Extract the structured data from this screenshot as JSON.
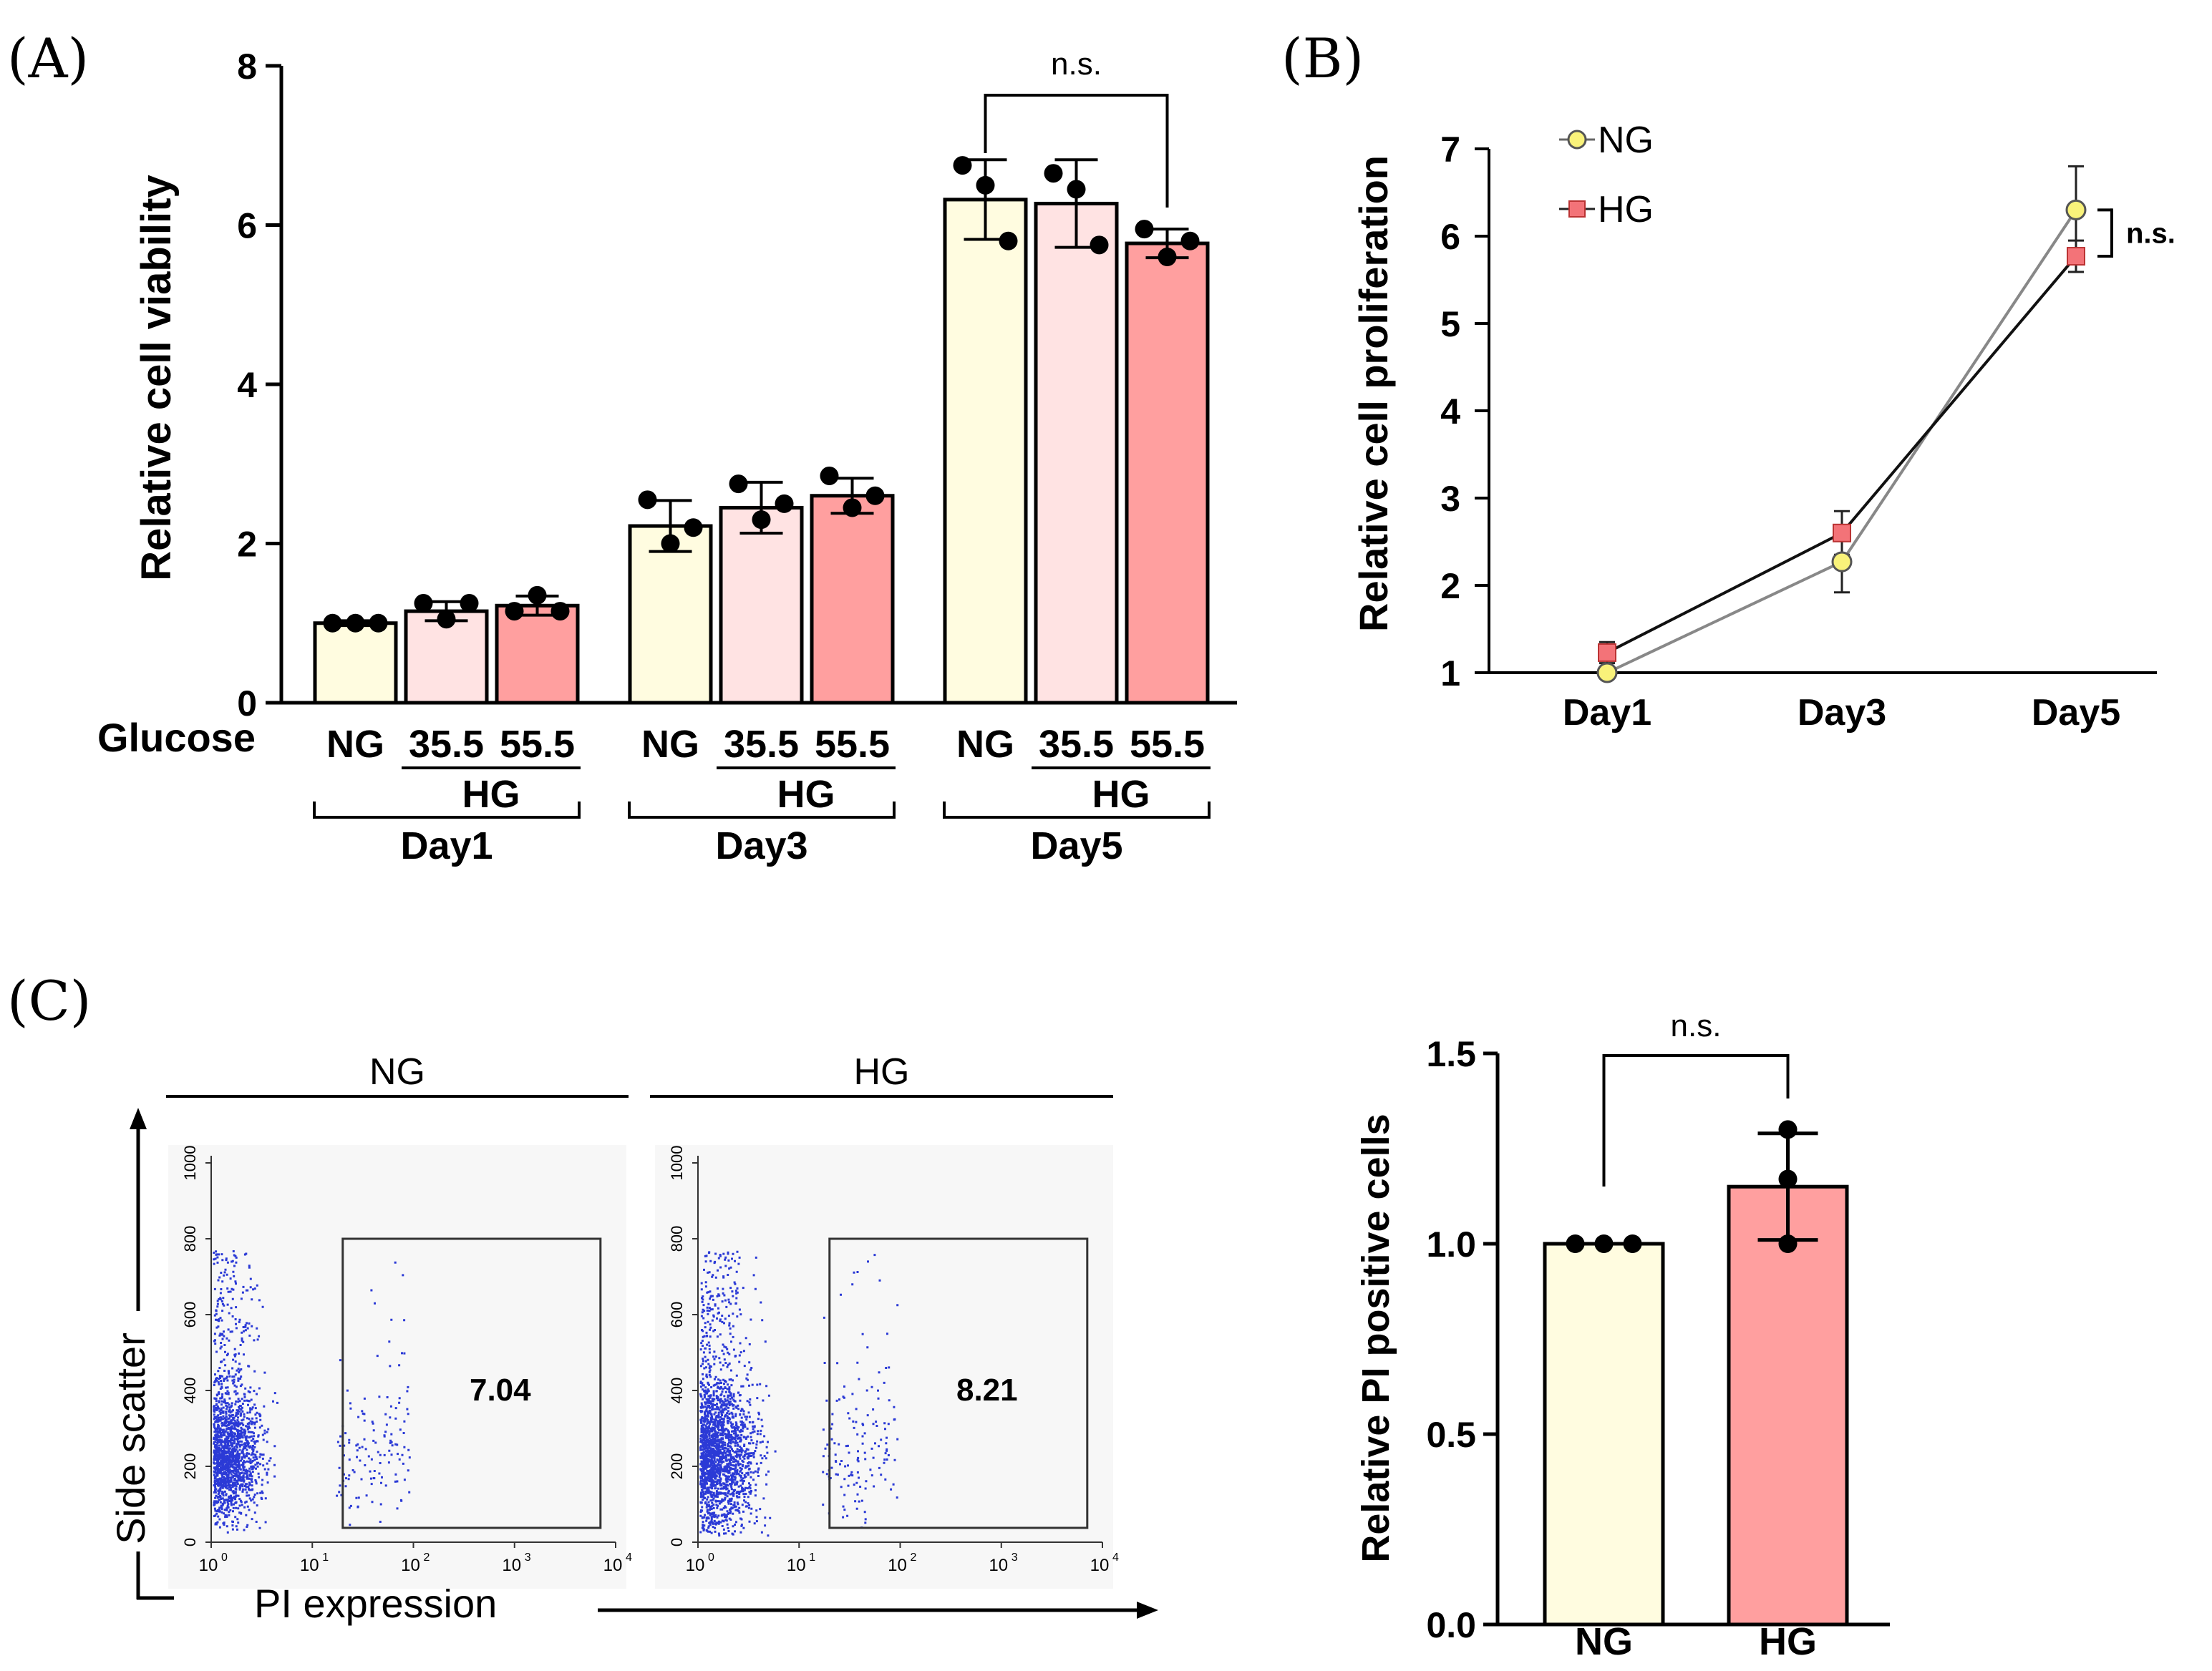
{
  "panels": {
    "A": {
      "label": "(A)"
    },
    "B": {
      "label": "(B)"
    },
    "C": {
      "label": "(C)"
    }
  },
  "colors": {
    "ng": "#fffce0",
    "hg_low": "#ffe3e3",
    "hg_high": "#ff9f9f",
    "marker_ng": "#f9f27a",
    "marker_hg": "#f37378",
    "line_ng": "#888888",
    "line_hg": "#111111",
    "dots": "#2b3ad6",
    "ink": "#000000"
  },
  "chart_data": [
    {
      "id": "viability",
      "type": "bar",
      "title": "",
      "ylabel": "Relative cell viability",
      "xlabel": "Glucose",
      "ylim": [
        0,
        8
      ],
      "yticks": [
        "0",
        "2",
        "4",
        "6",
        "8"
      ],
      "groups": [
        {
          "day": "Day1",
          "hg_label": "HG",
          "bars": [
            {
              "label": "NG",
              "value": 1.0,
              "sd": 0.03,
              "points": [
                1.0,
                1.0,
                1.0
              ],
              "color": "ng"
            },
            {
              "label": "35.5",
              "value": 1.15,
              "sd": 0.12,
              "points": [
                1.25,
                1.05,
                1.25
              ],
              "color": "hg_low"
            },
            {
              "label": "55.5",
              "value": 1.22,
              "sd": 0.12,
              "points": [
                1.15,
                1.35,
                1.15
              ],
              "color": "hg_high"
            }
          ]
        },
        {
          "day": "Day3",
          "hg_label": "HG",
          "bars": [
            {
              "label": "NG",
              "value": 2.22,
              "sd": 0.32,
              "points": [
                2.55,
                2.0,
                2.2
              ],
              "color": "ng"
            },
            {
              "label": "35.5",
              "value": 2.45,
              "sd": 0.32,
              "points": [
                2.75,
                2.3,
                2.5
              ],
              "color": "hg_low"
            },
            {
              "label": "55.5",
              "value": 2.6,
              "sd": 0.22,
              "points": [
                2.85,
                2.45,
                2.6
              ],
              "color": "hg_high"
            }
          ]
        },
        {
          "day": "Day5",
          "hg_label": "HG",
          "bars": [
            {
              "label": "NG",
              "value": 6.32,
              "sd": 0.5,
              "points": [
                6.75,
                6.5,
                5.8
              ],
              "color": "ng"
            },
            {
              "label": "35.5",
              "value": 6.27,
              "sd": 0.55,
              "points": [
                6.65,
                6.45,
                5.75
              ],
              "color": "hg_low"
            },
            {
              "label": "55.5",
              "value": 5.77,
              "sd": 0.18,
              "points": [
                5.95,
                5.6,
                5.8
              ],
              "color": "hg_high"
            }
          ]
        }
      ],
      "annotation": {
        "text": "n.s.",
        "from": "Day5 NG",
        "to": "Day5 55.5"
      }
    },
    {
      "id": "proliferation",
      "type": "line",
      "title": "",
      "ylabel": "Relative cell proliferation",
      "categories": [
        "Day1",
        "Day3",
        "Day5"
      ],
      "ylim": [
        1,
        7
      ],
      "yticks": [
        "1",
        "2",
        "3",
        "4",
        "5",
        "6",
        "7"
      ],
      "series": [
        {
          "name": "NG",
          "values": [
            1.0,
            2.27,
            6.3
          ],
          "err": [
            0.03,
            0.35,
            0.5
          ],
          "marker": "circle",
          "color": "line_ng",
          "fill": "marker_ng"
        },
        {
          "name": "HG",
          "values": [
            1.23,
            2.6,
            5.77
          ],
          "err": [
            0.12,
            0.25,
            0.18
          ],
          "marker": "square",
          "color": "line_hg",
          "fill": "marker_hg"
        }
      ],
      "annotation": {
        "text": "n.s."
      }
    },
    {
      "id": "flow",
      "type": "scatter",
      "xlabel": "PI expression",
      "ylabel": "Side scatter",
      "xscale": "log",
      "xlim": [
        1,
        10000
      ],
      "ylim": [
        0,
        1000
      ],
      "xticks": [
        "10",
        "10",
        "10",
        "10",
        "10"
      ],
      "xtick_exponents": [
        "0",
        "1",
        "2",
        "3",
        "4"
      ],
      "yticks": [
        "0",
        "200",
        "400",
        "600",
        "800",
        "1000"
      ],
      "plots": [
        {
          "title": "NG",
          "gate_value": "7.04",
          "seed": 11,
          "point_count": 1800,
          "spread": 1.0
        },
        {
          "title": "HG",
          "gate_value": "8.21",
          "seed": 29,
          "point_count": 2200,
          "spread": 1.15
        }
      ]
    },
    {
      "id": "pi_positive",
      "type": "bar",
      "ylabel": "Relative PI positive cells",
      "categories": [
        "NG",
        "HG"
      ],
      "values": [
        1.0,
        1.15
      ],
      "sd": [
        0.0,
        0.14
      ],
      "points": [
        [
          1.0,
          1.0,
          1.0
        ],
        [
          1.3,
          1.17,
          1.0
        ]
      ],
      "colors": [
        "ng",
        "hg_high"
      ],
      "ylim": [
        0,
        1.5
      ],
      "yticks": [
        "0.0",
        "0.5",
        "1.0",
        "1.5"
      ],
      "annotation": {
        "text": "n.s."
      }
    }
  ]
}
